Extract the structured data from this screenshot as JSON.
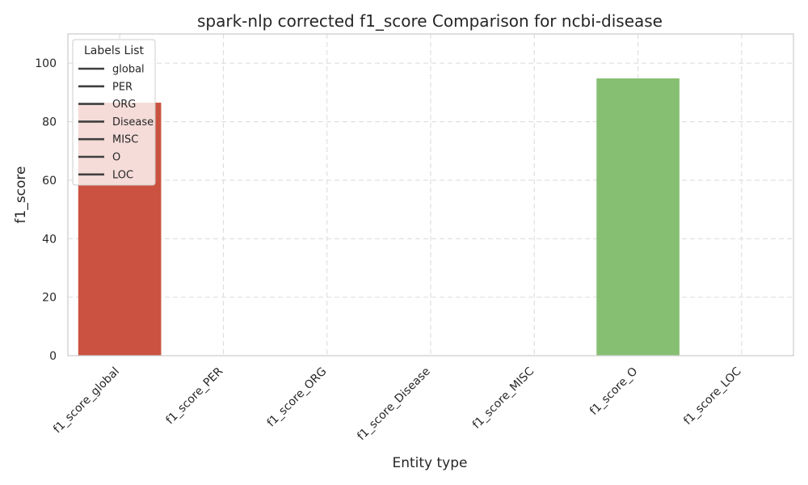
{
  "chart_data": {
    "type": "bar",
    "title": "spark-nlp corrected f1_score Comparison for ncbi-disease",
    "xlabel": "Entity type",
    "ylabel": "f1_score",
    "ylim": [
      0,
      110
    ],
    "yticks": [
      0,
      20,
      40,
      60,
      80,
      100
    ],
    "grid": true,
    "categories": [
      "f1_score_global",
      "f1_score_PER",
      "f1_score_ORG",
      "f1_score_Disease",
      "f1_score_MISC",
      "f1_score_O",
      "f1_score_LOC"
    ],
    "values": [
      86.5,
      0,
      0,
      0,
      0,
      94.8,
      0
    ],
    "bar_colors": [
      "#cb5241",
      "#e06a4a",
      "#f2a464",
      "#fbe18e",
      "#e4f091",
      "#87bf72",
      "#3b9a5a"
    ],
    "legend": {
      "title": "Labels List",
      "placement": "upper-left",
      "entries": [
        "global",
        "PER",
        "ORG",
        "Disease",
        "MISC",
        "O",
        "LOC"
      ],
      "line_color": "#3f3f3f"
    }
  }
}
